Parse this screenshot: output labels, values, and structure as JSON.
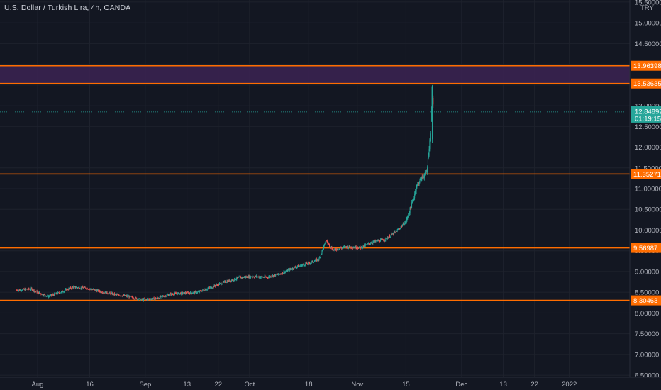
{
  "header": {
    "title": "U.S. Dollar / Turkish Lira, 4h, OANDA",
    "currency": "TRY"
  },
  "colors": {
    "background": "#131722",
    "grid": "#1e222d",
    "axis_text": "#b2b5be",
    "level_line": "#ff6d00",
    "zone_fill": "#3a2250",
    "up": "#26a69a",
    "down": "#ef5350",
    "price_label": "#26a69a"
  },
  "chart_data": {
    "type": "candlestick",
    "title": "U.S. Dollar / Turkish Lira, 4h, OANDA",
    "ylabel": "TRY",
    "ylim": [
      6.45,
      15.55
    ],
    "y_ticks": [
      "6.50000",
      "7.00000",
      "7.50000",
      "8.00000",
      "8.50000",
      "9.00000",
      "9.50000",
      "10.00000",
      "10.50000",
      "11.00000",
      "11.50000",
      "12.00000",
      "12.50000",
      "13.00000",
      "13.50000",
      "14.00000",
      "14.50000",
      "15.00000",
      "15.50000"
    ],
    "x_ticks": [
      "Aug",
      "16",
      "Sep",
      "13",
      "22",
      "Oct",
      "18",
      "Nov",
      "15",
      "Dec",
      "13",
      "22",
      "2022"
    ],
    "last_price": {
      "value": "12.84897",
      "countdown": "01:19:15"
    },
    "levels": [
      {
        "value": "13.96398"
      },
      {
        "value": "13.53635"
      },
      {
        "value": "11.35271"
      },
      {
        "value": "9.56987"
      },
      {
        "value": "8.30463"
      }
    ],
    "zone": {
      "low": 13.53635,
      "high": 13.96398
    },
    "price_path": [
      [
        "Jul 26",
        8.55
      ],
      [
        "Jul 30",
        8.58
      ],
      [
        "Aug 1",
        8.5
      ],
      [
        "Aug 4",
        8.4
      ],
      [
        "Aug 7",
        8.48
      ],
      [
        "Aug 11",
        8.62
      ],
      [
        "Aug 15",
        8.6
      ],
      [
        "Aug 19",
        8.52
      ],
      [
        "Aug 23",
        8.45
      ],
      [
        "Aug 27",
        8.4
      ],
      [
        "Aug 31",
        8.32
      ],
      [
        "Sep 4",
        8.35
      ],
      [
        "Sep 8",
        8.45
      ],
      [
        "Sep 12",
        8.48
      ],
      [
        "Sep 16",
        8.5
      ],
      [
        "Sep 20",
        8.62
      ],
      [
        "Sep 24",
        8.75
      ],
      [
        "Sep 28",
        8.85
      ],
      [
        "Oct 2",
        8.88
      ],
      [
        "Oct 6",
        8.86
      ],
      [
        "Oct 10",
        8.95
      ],
      [
        "Oct 14",
        9.1
      ],
      [
        "Oct 18",
        9.2
      ],
      [
        "Oct 21",
        9.3
      ],
      [
        "Oct 23",
        9.75
      ],
      [
        "Oct 25",
        9.52
      ],
      [
        "Oct 29",
        9.6
      ],
      [
        "Nov 2",
        9.58
      ],
      [
        "Nov 5",
        9.7
      ],
      [
        "Nov 9",
        9.78
      ],
      [
        "Nov 12",
        9.95
      ],
      [
        "Nov 15",
        10.2
      ],
      [
        "Nov 17",
        10.7
      ],
      [
        "Nov 18",
        11.05
      ],
      [
        "Nov 19",
        11.2
      ],
      [
        "Nov 21",
        11.4
      ],
      [
        "Nov 22",
        12.3
      ],
      [
        "Nov 22 pm",
        13.4
      ],
      [
        "Nov 23",
        12.84897
      ]
    ]
  }
}
